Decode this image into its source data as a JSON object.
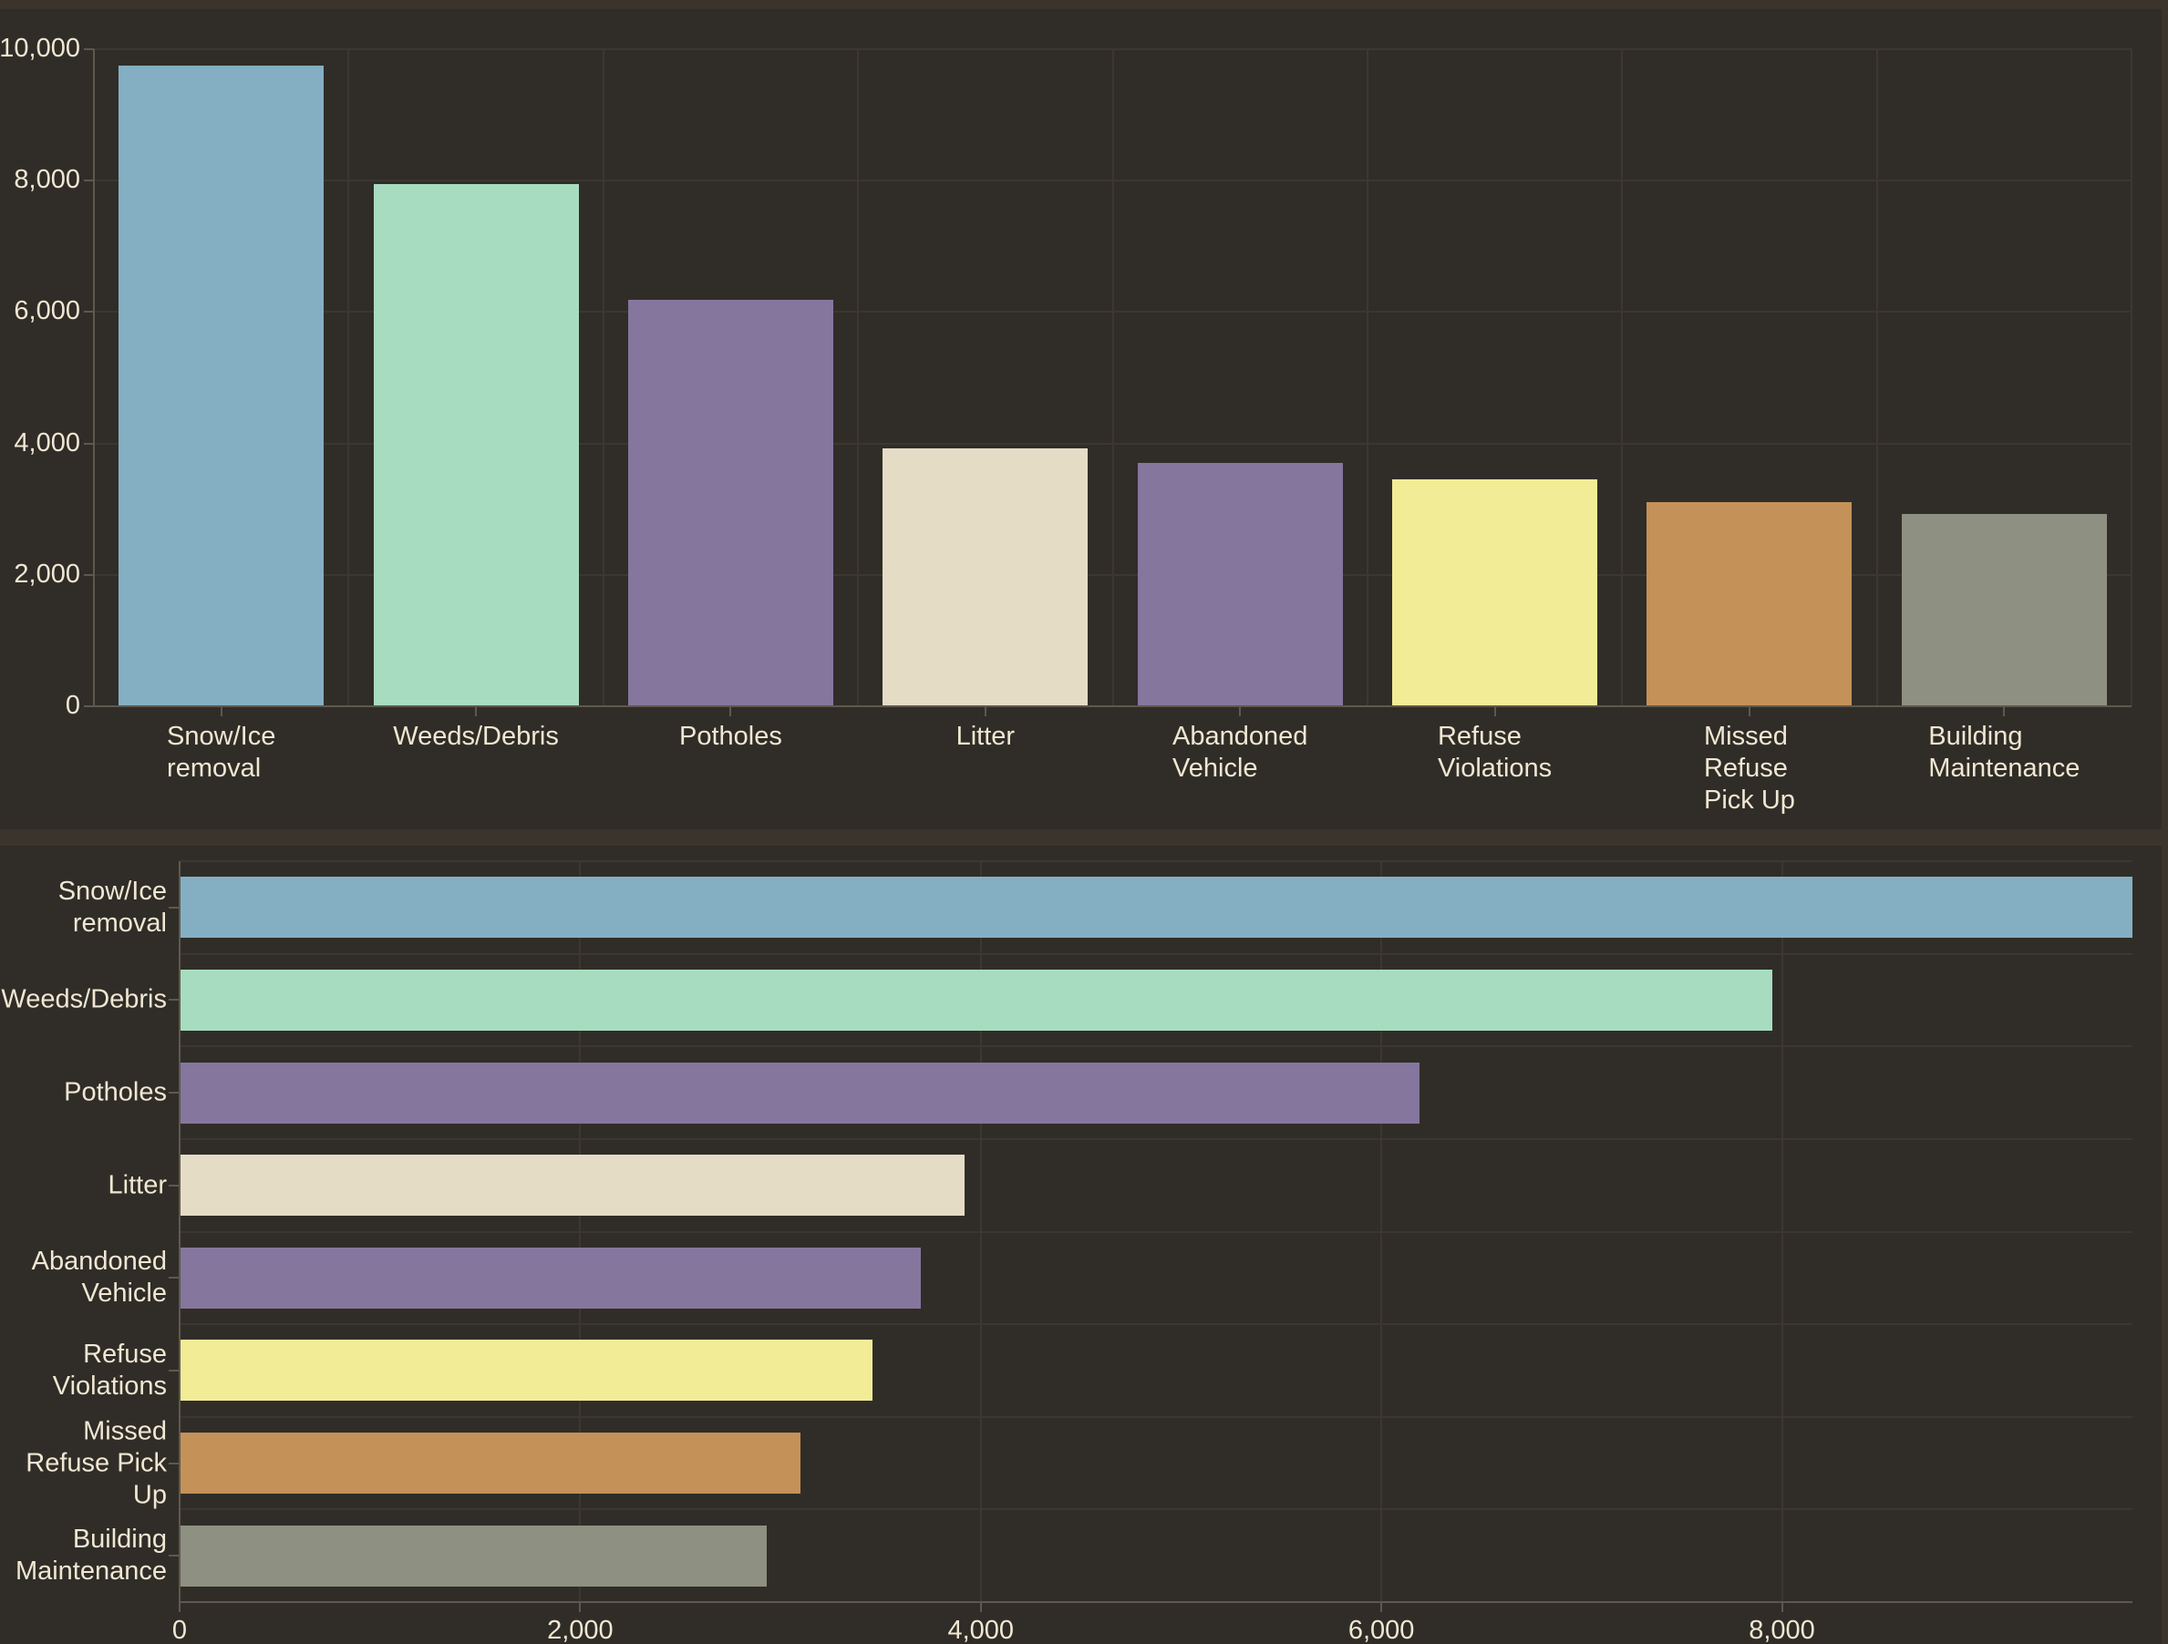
{
  "page": {
    "background": "#3A342C",
    "panel_background": "#302D28",
    "text_color": "#F0E7D3",
    "gridline_color": "#3C372F",
    "axis_color": "#5E584E"
  },
  "chart_data": [
    {
      "type": "bar",
      "orientation": "vertical",
      "title": "",
      "xlabel": "",
      "ylabel": "",
      "grid": true,
      "legend": false,
      "categories": [
        "Snow/Ice removal",
        "Weeds/Debris",
        "Potholes",
        "Litter",
        "Abandoned Vehicle",
        "Refuse Violations",
        "Missed Refuse Pick Up",
        "Building Maintenance"
      ],
      "category_label_lines": [
        [
          "Snow/Ice",
          "removal"
        ],
        [
          "Weeds/Debris"
        ],
        [
          "Potholes"
        ],
        [
          "Litter"
        ],
        [
          "Abandoned",
          "Vehicle"
        ],
        [
          "Refuse",
          "Violations"
        ],
        [
          "Missed",
          "Refuse",
          "Pick Up"
        ],
        [
          "Building",
          "Maintenance"
        ]
      ],
      "values": [
        9750,
        7950,
        6190,
        3920,
        3700,
        3460,
        3100,
        2930
      ],
      "bar_colors": [
        "#84AFC3",
        "#A7DCC1",
        "#85769D",
        "#E5DCC6",
        "#85769D",
        "#F2EC96",
        "#C49259",
        "#8E9081"
      ],
      "ylim": [
        0,
        10000
      ],
      "y_tick_values": [
        0,
        2000,
        4000,
        6000,
        8000,
        10000
      ],
      "y_tick_labels": [
        "0",
        "2,000",
        "4,000",
        "6,000",
        "8,000",
        "10,000"
      ]
    },
    {
      "type": "bar",
      "orientation": "horizontal",
      "title": "",
      "xlabel": "",
      "ylabel": "",
      "grid": true,
      "legend": false,
      "categories": [
        "Snow/Ice removal",
        "Weeds/Debris",
        "Potholes",
        "Litter",
        "Abandoned Vehicle",
        "Refuse Violations",
        "Missed Refuse Pick Up",
        "Building Maintenance"
      ],
      "category_label_lines": [
        [
          "Snow/Ice",
          "removal"
        ],
        [
          "Weeds/Debris"
        ],
        [
          "Potholes"
        ],
        [
          "Litter"
        ],
        [
          "Abandoned",
          "Vehicle"
        ],
        [
          "Refuse",
          "Violations"
        ],
        [
          "Missed",
          "Refuse Pick",
          "Up"
        ],
        [
          "Building",
          "Maintenance"
        ]
      ],
      "values": [
        9750,
        7950,
        6190,
        3920,
        3700,
        3460,
        3100,
        2930
      ],
      "bar_colors": [
        "#84AFC3",
        "#A7DCC1",
        "#85769D",
        "#E5DCC6",
        "#85769D",
        "#F2EC96",
        "#C49259",
        "#8E9081"
      ],
      "xlim": [
        0,
        9750
      ],
      "x_tick_values": [
        0,
        2000,
        4000,
        6000,
        8000
      ],
      "x_tick_labels": [
        "0",
        "2,000",
        "4,000",
        "6,000",
        "8,000"
      ]
    }
  ]
}
